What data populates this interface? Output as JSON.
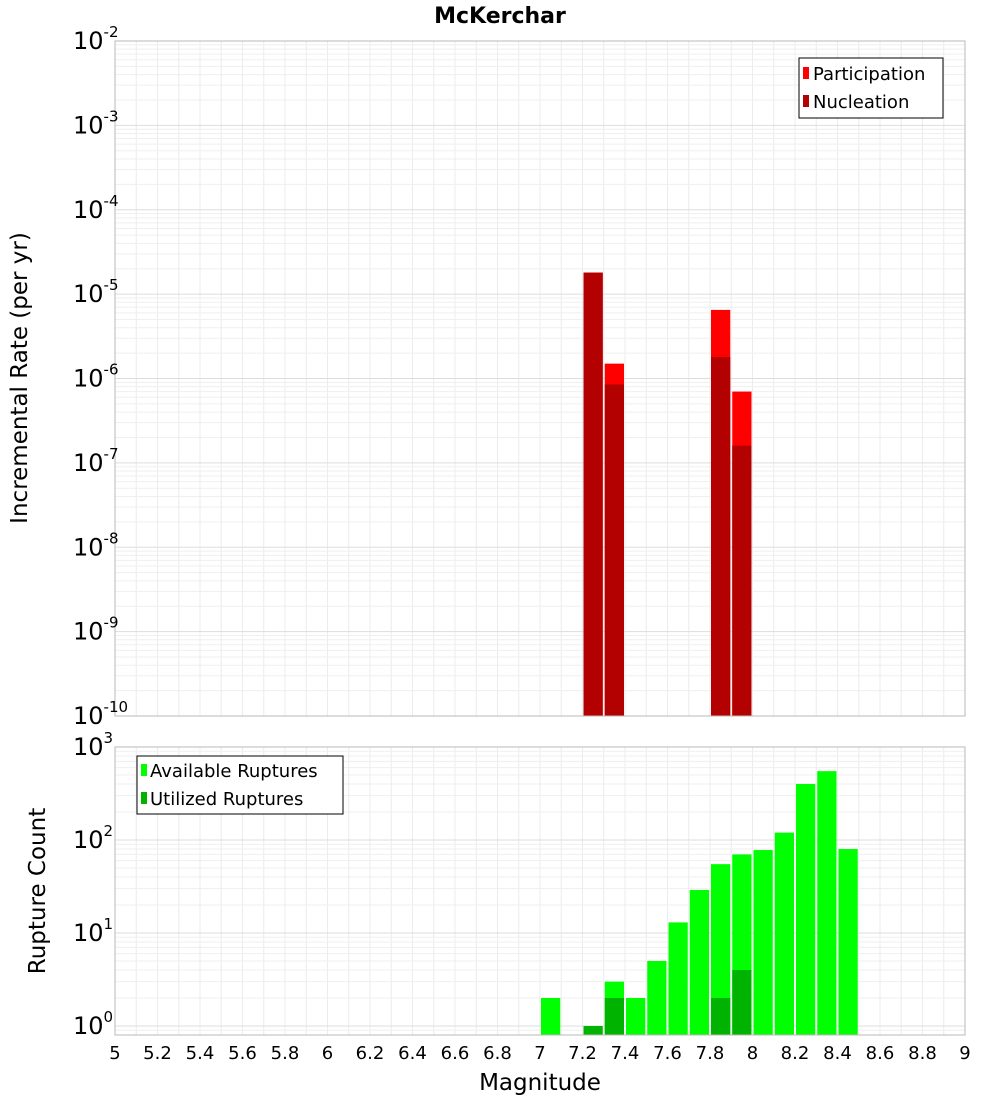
{
  "chart_data": [
    {
      "type": "bar",
      "title": "McKerchar",
      "xlabel": "",
      "ylabel": "Incremental Rate (per yr)",
      "yscale": "log",
      "xlim": [
        5,
        9
      ],
      "ylim": [
        1e-10,
        0.01
      ],
      "y_ticks": [
        {
          "mant": "10",
          "exp": "-10"
        },
        {
          "mant": "10",
          "exp": "-9"
        },
        {
          "mant": "10",
          "exp": "-8"
        },
        {
          "mant": "10",
          "exp": "-7"
        },
        {
          "mant": "10",
          "exp": "-6"
        },
        {
          "mant": "10",
          "exp": "-5"
        },
        {
          "mant": "10",
          "exp": "-4"
        },
        {
          "mant": "10",
          "exp": "-3"
        },
        {
          "mant": "10",
          "exp": "-2"
        }
      ],
      "grid": true,
      "legend_position": "top-right",
      "bin_width": 0.1,
      "series": [
        {
          "name": "Participation",
          "color": "#ff0000",
          "x": [
            7.25,
            7.35,
            7.85,
            7.95
          ],
          "values": [
            1.8e-05,
            1.5e-06,
            6.5e-06,
            7e-07
          ]
        },
        {
          "name": "Nucleation",
          "color": "#b30000",
          "x": [
            7.25,
            7.35,
            7.85,
            7.95
          ],
          "values": [
            1.8e-05,
            8.5e-07,
            1.8e-06,
            1.6e-07
          ]
        }
      ]
    },
    {
      "type": "bar",
      "title": "",
      "xlabel": "Magnitude",
      "ylabel": "Rupture Count",
      "yscale": "log",
      "xlim": [
        5,
        9
      ],
      "ylim": [
        0.8,
        1000
      ],
      "y_ticks": [
        {
          "mant": "10",
          "exp": "0"
        },
        {
          "mant": "10",
          "exp": "1"
        },
        {
          "mant": "10",
          "exp": "2"
        },
        {
          "mant": "10",
          "exp": "3"
        }
      ],
      "x_ticks": [
        "5",
        "5.2",
        "5.4",
        "5.6",
        "5.8",
        "6",
        "6.2",
        "6.4",
        "6.6",
        "6.8",
        "7",
        "7.2",
        "7.4",
        "7.6",
        "7.8",
        "8",
        "8.2",
        "8.4",
        "8.6",
        "8.8",
        "9"
      ],
      "grid": true,
      "legend_position": "top-left",
      "bin_width": 0.1,
      "series": [
        {
          "name": "Available Ruptures",
          "color": "#00ff00",
          "x": [
            7.05,
            7.35,
            7.45,
            7.55,
            7.65,
            7.75,
            7.85,
            7.95,
            8.05,
            8.15,
            8.25,
            8.35,
            8.45
          ],
          "values": [
            2,
            3,
            2,
            5,
            13,
            29,
            55,
            70,
            78,
            120,
            400,
            550,
            80
          ]
        },
        {
          "name": "Utilized Ruptures",
          "color": "#00b300",
          "x": [
            7.25,
            7.35,
            7.85,
            7.95
          ],
          "values": [
            1,
            2,
            2,
            4
          ]
        }
      ]
    }
  ]
}
